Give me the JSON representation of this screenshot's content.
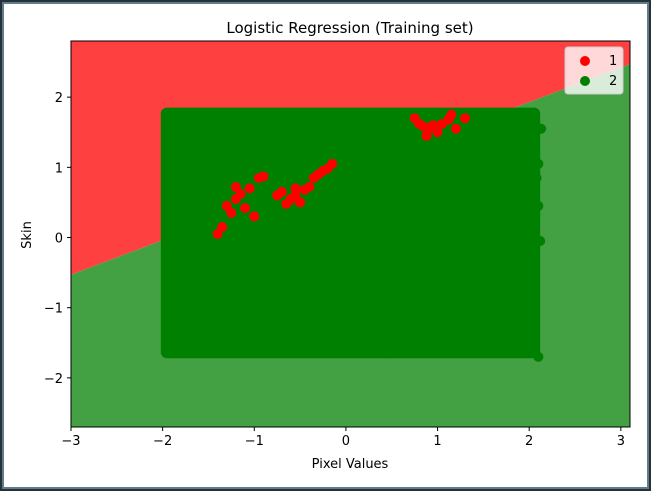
{
  "chart_data": {
    "type": "scatter",
    "title": "Logistic Regression (Training set)",
    "xlabel": "Pixel Values",
    "ylabel": "Skin",
    "xlim": [
      -3.0,
      3.1
    ],
    "ylim": [
      -2.7,
      2.8
    ],
    "xticks": [
      -3,
      -2,
      -1,
      0,
      1,
      2,
      3
    ],
    "yticks": [
      -2,
      -1,
      0,
      1,
      2
    ],
    "xtick_labels": [
      "−3",
      "−2",
      "−1",
      "0",
      "1",
      "2",
      "3"
    ],
    "ytick_labels": [
      "−2",
      "−1",
      "0",
      "1",
      "2"
    ],
    "decision_boundary": {
      "x": [
        -3.0,
        3.1
      ],
      "y": [
        -0.53,
        2.47
      ]
    },
    "region_colors": {
      "1": "#ff4040",
      "2": "#43a043"
    },
    "bulk_region": {
      "series": "2",
      "x": [
        -2.02,
        2.12
      ],
      "y": [
        -1.72,
        1.85
      ]
    },
    "series": [
      {
        "name": "1",
        "color": "#ff0000",
        "points": [
          {
            "x": 0.8,
            "y": 1.62
          },
          {
            "x": 0.85,
            "y": 1.58
          },
          {
            "x": 0.9,
            "y": 1.55
          },
          {
            "x": 0.95,
            "y": 1.6
          },
          {
            "x": 1.0,
            "y": 1.5
          },
          {
            "x": 1.05,
            "y": 1.62
          },
          {
            "x": 1.12,
            "y": 1.68
          },
          {
            "x": 1.2,
            "y": 1.55
          },
          {
            "x": 0.88,
            "y": 1.45
          },
          {
            "x": 1.15,
            "y": 1.75
          },
          {
            "x": 1.3,
            "y": 1.7
          },
          {
            "x": 0.75,
            "y": 1.7
          },
          {
            "x": -0.95,
            "y": 0.85
          },
          {
            "x": -0.9,
            "y": 0.87
          },
          {
            "x": -1.05,
            "y": 0.7
          },
          {
            "x": -1.15,
            "y": 0.62
          },
          {
            "x": -1.2,
            "y": 0.55
          },
          {
            "x": -1.3,
            "y": 0.45
          },
          {
            "x": -1.1,
            "y": 0.42
          },
          {
            "x": -1.25,
            "y": 0.35
          },
          {
            "x": -0.75,
            "y": 0.6
          },
          {
            "x": -0.7,
            "y": 0.65
          },
          {
            "x": -0.6,
            "y": 0.55
          },
          {
            "x": -0.55,
            "y": 0.6
          },
          {
            "x": -0.45,
            "y": 0.68
          },
          {
            "x": -0.4,
            "y": 0.72
          },
          {
            "x": -0.35,
            "y": 0.85
          },
          {
            "x": -0.3,
            "y": 0.9
          },
          {
            "x": -0.25,
            "y": 0.95
          },
          {
            "x": -0.2,
            "y": 0.98
          },
          {
            "x": -0.15,
            "y": 1.05
          },
          {
            "x": -0.55,
            "y": 0.7
          },
          {
            "x": -1.0,
            "y": 0.3
          },
          {
            "x": -1.35,
            "y": 0.15
          },
          {
            "x": -1.4,
            "y": 0.05
          },
          {
            "x": -0.5,
            "y": 0.5
          },
          {
            "x": -0.65,
            "y": 0.48
          },
          {
            "x": -1.2,
            "y": 0.72
          }
        ]
      },
      {
        "name": "2",
        "color": "#008000",
        "points": [
          {
            "x": 2.1,
            "y": -1.7
          },
          {
            "x": 0.9,
            "y": -1.45
          },
          {
            "x": 0.6,
            "y": -1.5
          },
          {
            "x": 0.3,
            "y": -1.55
          },
          {
            "x": 0.7,
            "y": -1.6
          },
          {
            "x": 1.1,
            "y": -1.35
          },
          {
            "x": 1.5,
            "y": -1.05
          },
          {
            "x": 1.7,
            "y": -1.05
          },
          {
            "x": 1.9,
            "y": -0.95
          },
          {
            "x": 2.0,
            "y": -0.6
          },
          {
            "x": 1.35,
            "y": -0.9
          },
          {
            "x": 0.45,
            "y": -1.65
          },
          {
            "x": 2.12,
            "y": -0.05
          },
          {
            "x": 2.1,
            "y": 0.45
          },
          {
            "x": 2.08,
            "y": 0.85
          },
          {
            "x": 2.13,
            "y": 1.55
          },
          {
            "x": 2.1,
            "y": 1.05
          },
          {
            "x": 2.05,
            "y": -0.3
          },
          {
            "x": 0.55,
            "y": 1.25
          },
          {
            "x": 0.75,
            "y": 1.05
          },
          {
            "x": 1.1,
            "y": 1.4
          },
          {
            "x": -0.1,
            "y": 1.6
          },
          {
            "x": -0.3,
            "y": 1.15
          },
          {
            "x": -1.1,
            "y": 0.95
          },
          {
            "x": -0.8,
            "y": 0.5
          },
          {
            "x": -0.4,
            "y": 0.5
          },
          {
            "x": -1.2,
            "y": 0.1
          },
          {
            "x": 0.2,
            "y": 1.75
          },
          {
            "x": 0.6,
            "y": 1.7
          },
          {
            "x": -0.6,
            "y": 1.3
          }
        ]
      }
    ],
    "legend": {
      "placement": "top-right",
      "entries": [
        "1",
        "2"
      ]
    }
  }
}
